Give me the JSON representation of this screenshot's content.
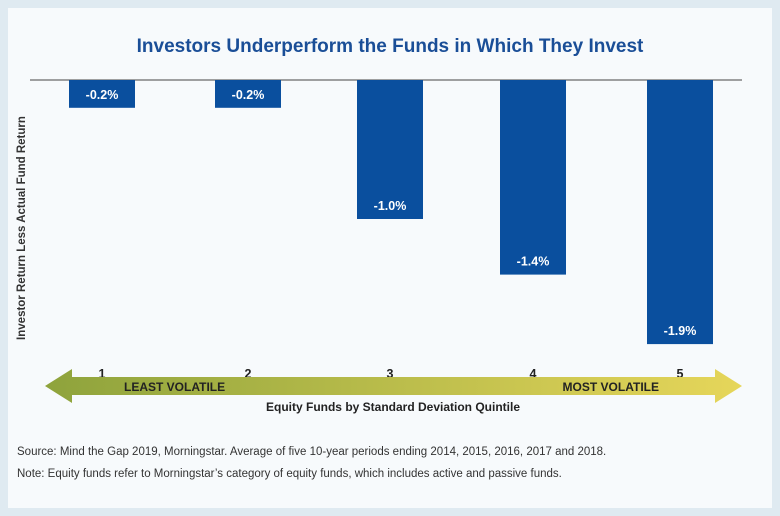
{
  "chart_data": {
    "type": "bar",
    "title": "Investors Underperform the Funds in Which They Invest",
    "ylabel": "Investor Return Less Actual Fund Return",
    "xlabel": "Equity Funds by Standard Deviation Quintile",
    "categories": [
      "1",
      "2",
      "3",
      "4",
      "5"
    ],
    "values": [
      -0.2,
      -0.2,
      -1.0,
      -1.4,
      -1.9
    ],
    "value_labels": [
      "-0.2%",
      "-0.2%",
      "-1.0%",
      "-1.4%",
      "-1.9%"
    ],
    "arrow_left_label": "LEAST VOLATILE",
    "arrow_right_label": "MOST VOLATILE",
    "ylim": [
      -1.9,
      0
    ],
    "bar_color": "#0a4f9e",
    "arrow_colors": [
      "#8ea33c",
      "#e6d65a"
    ]
  },
  "notes": {
    "source": "Source: Mind the Gap 2019, Morningstar.  Average of five 10-year periods ending 2014, 2015, 2016, 2017 and 2018.",
    "note": "Note: Equity funds refer to Morningstar’s category of equity funds, which includes active and passive funds."
  }
}
